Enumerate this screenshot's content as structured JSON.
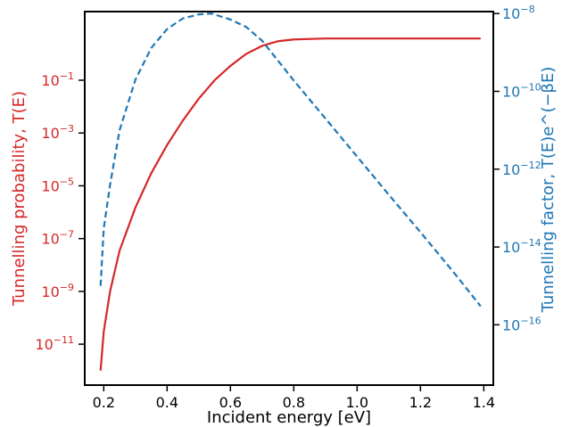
{
  "chart_data": {
    "type": "line",
    "xlabel": "Incident energy [eV]",
    "xlim": [
      0.14,
      1.43
    ],
    "x_ticks": [
      0.2,
      0.4,
      0.6,
      0.8,
      1.0,
      1.2,
      1.4
    ],
    "x_tick_labels": [
      "0.2",
      "0.4",
      "0.6",
      "0.8",
      "1.0",
      "1.2",
      "1.4"
    ],
    "left_axis": {
      "label": "Tunnelling probability, T(E)",
      "color": "#d62728",
      "scale": "log",
      "log_range": [
        -12.55,
        1.6
      ],
      "tick_exponents": [
        -1,
        -3,
        -5,
        -7,
        -9,
        -11
      ],
      "tick_labels": [
        "10",
        "10",
        "10",
        "10",
        "10",
        "10"
      ],
      "tick_superscripts": [
        "−1",
        "−3",
        "−5",
        "−7",
        "−9",
        "−11"
      ]
    },
    "right_axis": {
      "label": "Tunnelling factor, T(E)e^(−βE)",
      "color": "#1f77b4",
      "scale": "log",
      "log_range": [
        -17.55,
        -7.95
      ],
      "tick_exponents": [
        -8,
        -10,
        -12,
        -14,
        -16
      ],
      "tick_labels": [
        "10",
        "10",
        "10",
        "10",
        "10"
      ],
      "tick_superscripts": [
        "−8",
        "−10",
        "−12",
        "−14",
        "−16"
      ]
    },
    "series": [
      {
        "axis": "left",
        "color": "#d62728",
        "style": "solid",
        "points": [
          [
            0.19,
            1e-12
          ],
          [
            0.2,
            3e-11
          ],
          [
            0.22,
            1e-09
          ],
          [
            0.25,
            3.5e-08
          ],
          [
            0.3,
            1.5e-06
          ],
          [
            0.35,
            3e-05
          ],
          [
            0.4,
            0.00035
          ],
          [
            0.45,
            0.003
          ],
          [
            0.5,
            0.02
          ],
          [
            0.55,
            0.1
          ],
          [
            0.6,
            0.35
          ],
          [
            0.65,
            1.0
          ],
          [
            0.7,
            2.0
          ],
          [
            0.75,
            3.0
          ],
          [
            0.8,
            3.5
          ],
          [
            0.9,
            3.8
          ],
          [
            1.0,
            3.8
          ],
          [
            1.2,
            3.8
          ],
          [
            1.39,
            3.8
          ]
        ]
      },
      {
        "axis": "right",
        "color": "#1f77b4",
        "style": "dashed",
        "points": [
          [
            0.19,
            1e-15
          ],
          [
            0.2,
            3e-14
          ],
          [
            0.22,
            4e-13
          ],
          [
            0.25,
            1e-11
          ],
          [
            0.3,
            2e-10
          ],
          [
            0.35,
            1.3e-09
          ],
          [
            0.4,
            4e-09
          ],
          [
            0.45,
            7.5e-09
          ],
          [
            0.5,
            9.5e-09
          ],
          [
            0.54,
            1e-08
          ],
          [
            0.6,
            7e-09
          ],
          [
            0.65,
            4.5e-09
          ],
          [
            0.7,
            2e-09
          ],
          [
            0.8,
            1.9e-10
          ],
          [
            0.9,
            2e-11
          ],
          [
            1.0,
            2.1e-12
          ],
          [
            1.1,
            2.2e-13
          ],
          [
            1.2,
            2.4e-14
          ],
          [
            1.3,
            2.5e-15
          ],
          [
            1.39,
            3e-16
          ]
        ]
      }
    ],
    "grid": false
  }
}
